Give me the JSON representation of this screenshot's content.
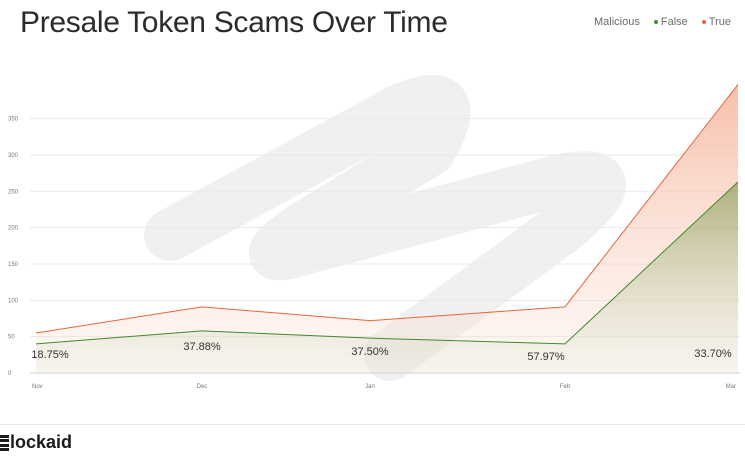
{
  "title": "Presale Token Scams Over Time",
  "legend": {
    "heading": "Malicious",
    "items": [
      {
        "name": "False",
        "color": "#3f8a2e"
      },
      {
        "name": "True",
        "color": "#e8663a"
      }
    ]
  },
  "brand": {
    "text": "lockaid",
    "mark": "B"
  },
  "chart_data": {
    "type": "area",
    "categories": [
      "Nov",
      "Dec",
      "Jan",
      "Feb",
      "Mar"
    ],
    "series": [
      {
        "name": "False",
        "values": [
          40,
          58,
          48,
          40,
          263
        ]
      },
      {
        "name": "True",
        "values": [
          55,
          91,
          72,
          91,
          397
        ]
      }
    ],
    "percent_labels": [
      "18.75%",
      "37.88%",
      "37.50%",
      "57.97%",
      "33.70%"
    ],
    "yticks": [
      0,
      50,
      100,
      150,
      200,
      250,
      300,
      350
    ],
    "ylim": [
      0,
      410
    ],
    "grid": true,
    "legend_position": "top-right"
  }
}
